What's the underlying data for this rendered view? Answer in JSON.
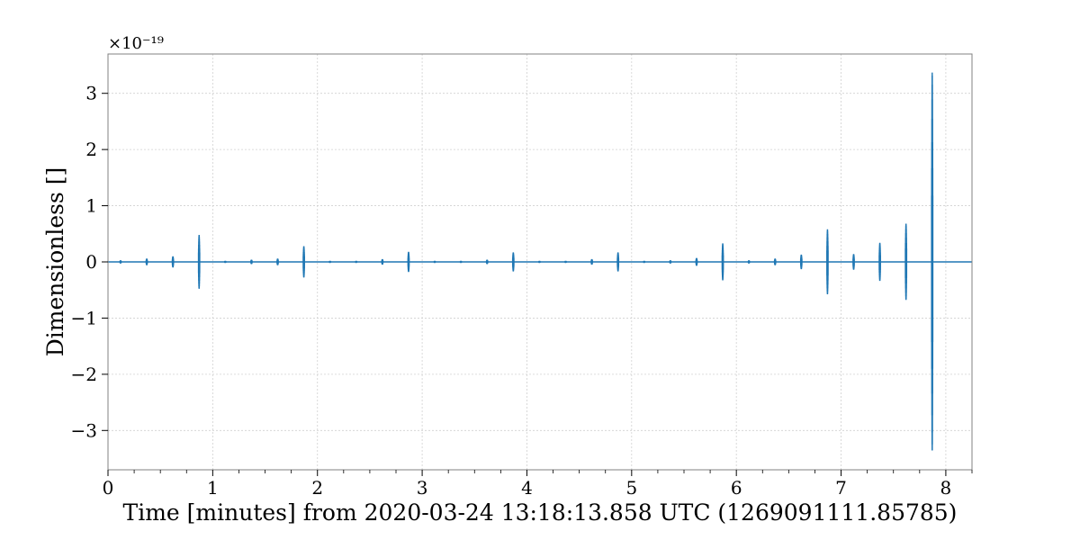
{
  "chart_data": {
    "type": "line",
    "title": "",
    "xlabel": "Time [minutes] from 2020-03-24 13:18:13.858 UTC (1269091111.85785)",
    "ylabel": "Dimensionless []",
    "y_scale_label": "×10⁻¹⁹",
    "y_scale_exponent": -19,
    "xlim": [
      0,
      8.25
    ],
    "ylim": [
      -3.7,
      3.7
    ],
    "x_ticks": [
      0,
      1,
      2,
      3,
      4,
      5,
      6,
      7,
      8
    ],
    "x_tick_labels": [
      "0",
      "1",
      "2",
      "3",
      "4",
      "5",
      "6",
      "7",
      "8"
    ],
    "y_ticks": [
      3,
      2,
      1,
      0,
      -1,
      -2,
      -3
    ],
    "y_tick_labels": [
      "3",
      "2",
      "1",
      "0",
      "−1",
      "−2",
      "−3"
    ],
    "grid": true,
    "series_color": "#1f77b4",
    "series": [
      {
        "baseline": 0,
        "bursts": [
          {
            "t": 0.12,
            "amp": 0.03
          },
          {
            "t": 0.37,
            "amp": 0.06
          },
          {
            "t": 0.62,
            "amp": 0.1
          },
          {
            "t": 0.87,
            "amp": 0.48
          },
          {
            "t": 1.12,
            "amp": 0.02
          },
          {
            "t": 1.37,
            "amp": 0.04
          },
          {
            "t": 1.62,
            "amp": 0.06
          },
          {
            "t": 1.87,
            "amp": 0.28
          },
          {
            "t": 2.12,
            "amp": 0.02
          },
          {
            "t": 2.37,
            "amp": 0.02
          },
          {
            "t": 2.62,
            "amp": 0.05
          },
          {
            "t": 2.87,
            "amp": 0.18
          },
          {
            "t": 3.12,
            "amp": 0.02
          },
          {
            "t": 3.37,
            "amp": 0.02
          },
          {
            "t": 3.62,
            "amp": 0.04
          },
          {
            "t": 3.87,
            "amp": 0.17
          },
          {
            "t": 4.12,
            "amp": 0.02
          },
          {
            "t": 4.37,
            "amp": 0.02
          },
          {
            "t": 4.62,
            "amp": 0.05
          },
          {
            "t": 4.87,
            "amp": 0.17
          },
          {
            "t": 5.12,
            "amp": 0.02
          },
          {
            "t": 5.37,
            "amp": 0.03
          },
          {
            "t": 5.62,
            "amp": 0.07
          },
          {
            "t": 5.87,
            "amp": 0.33
          },
          {
            "t": 6.12,
            "amp": 0.03
          },
          {
            "t": 6.37,
            "amp": 0.06
          },
          {
            "t": 6.62,
            "amp": 0.13
          },
          {
            "t": 6.87,
            "amp": 0.58
          },
          {
            "t": 7.12,
            "amp": 0.14
          },
          {
            "t": 7.37,
            "amp": 0.34
          },
          {
            "t": 7.62,
            "amp": 0.68
          },
          {
            "t": 7.87,
            "amp": 3.37
          }
        ]
      }
    ]
  }
}
